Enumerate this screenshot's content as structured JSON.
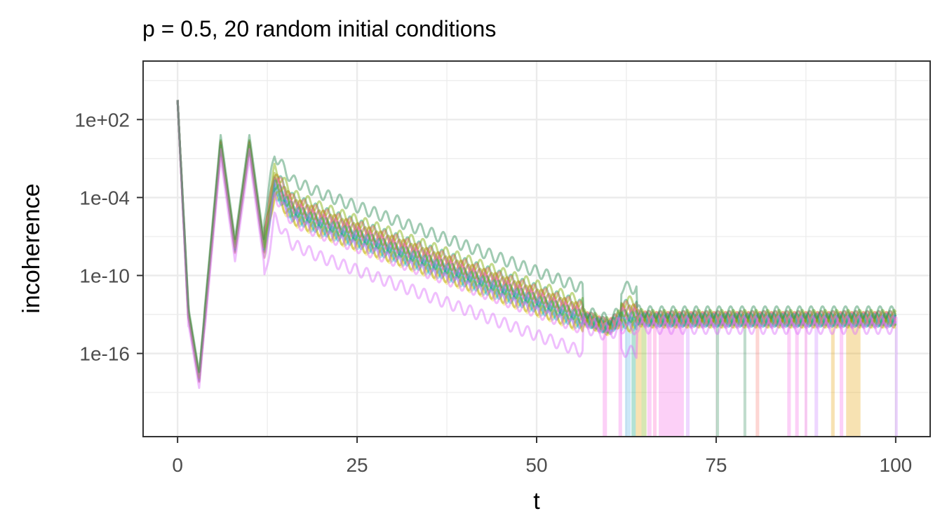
{
  "chart_data": {
    "type": "line",
    "title": "p = 0.5, 20 random initial conditions",
    "xlabel": "t",
    "ylabel": "incoherence",
    "xlim": [
      -4.8,
      104.8
    ],
    "ylim_log10": [
      -22.4,
      6.5
    ],
    "y_scale": "log10",
    "x_ticks": [
      0,
      25,
      50,
      75,
      100
    ],
    "x_tick_labels": [
      "0",
      "25",
      "50",
      "75",
      "100"
    ],
    "y_ticks_log10": [
      2,
      -4,
      -10,
      -16
    ],
    "y_tick_labels": [
      "1e+02",
      "1e-04",
      "1e-10",
      "1e-16"
    ],
    "grid": true,
    "legend": "none",
    "series_count": 20,
    "series_colors": [
      "#E69F00",
      "#56B4E9",
      "#009E73",
      "#F0E442",
      "#CC79A7",
      "#D55E00",
      "#F564E3",
      "#00BFC4",
      "#7CAE00",
      "#C77CFF",
      "#619CFF",
      "#F8766D",
      "#00BA38",
      "#B79F00",
      "#FF61C3",
      "#00C19F",
      "#DB72FB",
      "#93AA00",
      "#E76BF3",
      "#2E8B57"
    ],
    "series_offsets_log10": [
      -0.3,
      -0.5,
      0.9,
      -0.7,
      0.2,
      0.6,
      -0.2,
      -0.4,
      1.2,
      0.4,
      -0.1,
      0.8,
      0.1,
      -0.6,
      0.3,
      0.0,
      -2.6,
      0.5,
      -0.8,
      2.3
    ],
    "envelope": {
      "t": [
        0,
        1.5,
        3,
        6,
        8,
        10,
        12,
        13.5,
        16,
        20,
        30,
        40,
        50,
        60,
        62,
        66,
        75,
        100
      ],
      "log10_value": [
        3.5,
        -13,
        -18,
        0,
        -8,
        0,
        -8,
        -3,
        -5,
        -6,
        -8,
        -10,
        -12,
        -14,
        -13.2,
        -13.4,
        -13.4,
        -13.4
      ]
    },
    "dropouts": [
      {
        "t": 59.2,
        "width": 0.6,
        "color": "#F564E3"
      },
      {
        "t": 61.4,
        "width": 0.5,
        "color": "#F564E3"
      },
      {
        "t": 62.3,
        "width": 0.8,
        "color": "#56B4E9"
      },
      {
        "t": 63.2,
        "width": 0.6,
        "color": "#009E73"
      },
      {
        "t": 63.8,
        "width": 0.8,
        "color": "#E69F00"
      },
      {
        "t": 64.6,
        "width": 0.7,
        "color": "#7CAE00"
      },
      {
        "t": 65.4,
        "width": 0.6,
        "color": "#F564E3"
      },
      {
        "t": 66.2,
        "width": 0.5,
        "color": "#FF61C3"
      },
      {
        "t": 67.0,
        "width": 3.5,
        "color": "#F564E3"
      },
      {
        "t": 70.8,
        "width": 0.5,
        "color": "#C77CFF"
      },
      {
        "t": 75.0,
        "width": 0.4,
        "color": "#2E8B57"
      },
      {
        "t": 78.8,
        "width": 0.4,
        "color": "#2E8B57"
      },
      {
        "t": 80.5,
        "width": 0.5,
        "color": "#F8766D"
      },
      {
        "t": 84.9,
        "width": 0.5,
        "color": "#F564E3"
      },
      {
        "t": 86.0,
        "width": 0.5,
        "color": "#F564E3"
      },
      {
        "t": 87.3,
        "width": 0.4,
        "color": "#F564E3"
      },
      {
        "t": 88.7,
        "width": 0.5,
        "color": "#C77CFF"
      },
      {
        "t": 91.0,
        "width": 0.5,
        "color": "#E69F00"
      },
      {
        "t": 92.2,
        "width": 0.5,
        "color": "#F564E3"
      },
      {
        "t": 93.1,
        "width": 2.0,
        "color": "#E69F00"
      },
      {
        "t": 99.9,
        "width": 0.4,
        "color": "#C77CFF"
      }
    ]
  }
}
